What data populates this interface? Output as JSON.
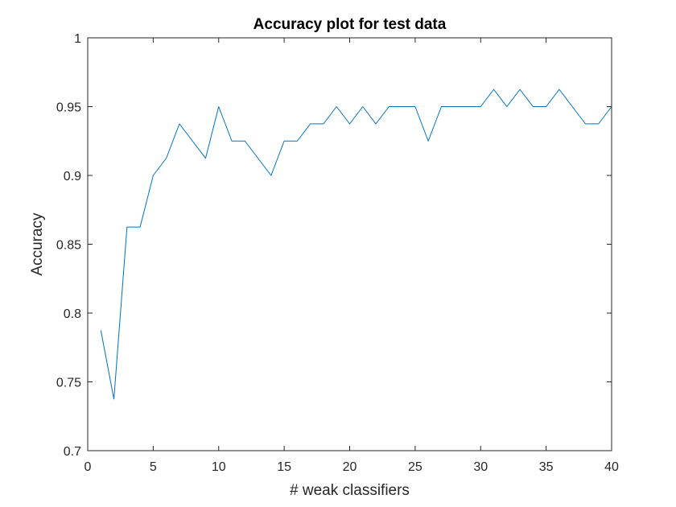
{
  "chart_data": {
    "type": "line",
    "title": "Accuracy plot for test data",
    "xlabel": "# weak classifiers",
    "ylabel": "Accuracy",
    "xlim": [
      0,
      40
    ],
    "ylim": [
      0.7,
      1
    ],
    "xticks": [
      0,
      5,
      10,
      15,
      20,
      25,
      30,
      35,
      40
    ],
    "xtick_labels": [
      "0",
      "5",
      "10",
      "15",
      "20",
      "25",
      "30",
      "35",
      "40"
    ],
    "yticks": [
      0.7,
      0.75,
      0.8,
      0.85,
      0.9,
      0.95,
      1
    ],
    "ytick_labels": [
      "0.7",
      "0.75",
      "0.8",
      "0.85",
      "0.9",
      "0.95",
      "1"
    ],
    "grid": false,
    "line_color": "#0072BD",
    "axis_color": "#262626",
    "series": [
      {
        "x": [
          1,
          2,
          3,
          4,
          5,
          6,
          7,
          8,
          9,
          10,
          11,
          12,
          13,
          14,
          15,
          16,
          17,
          18,
          19,
          20,
          21,
          22,
          23,
          24,
          25,
          26,
          27,
          28,
          29,
          30,
          31,
          32,
          33,
          34,
          35,
          36,
          37,
          38,
          39,
          40
        ],
        "values": [
          0.7875,
          0.7375,
          0.8625,
          0.8625,
          0.9,
          0.9125,
          0.9375,
          0.925,
          0.9125,
          0.95,
          0.925,
          0.925,
          0.9125,
          0.9,
          0.925,
          0.925,
          0.9375,
          0.9375,
          0.95,
          0.9375,
          0.95,
          0.9375,
          0.95,
          0.95,
          0.95,
          0.925,
          0.95,
          0.95,
          0.95,
          0.95,
          0.9625,
          0.95,
          0.9625,
          0.95,
          0.95,
          0.9625,
          0.95,
          0.9375,
          0.9375,
          0.95
        ]
      }
    ]
  }
}
